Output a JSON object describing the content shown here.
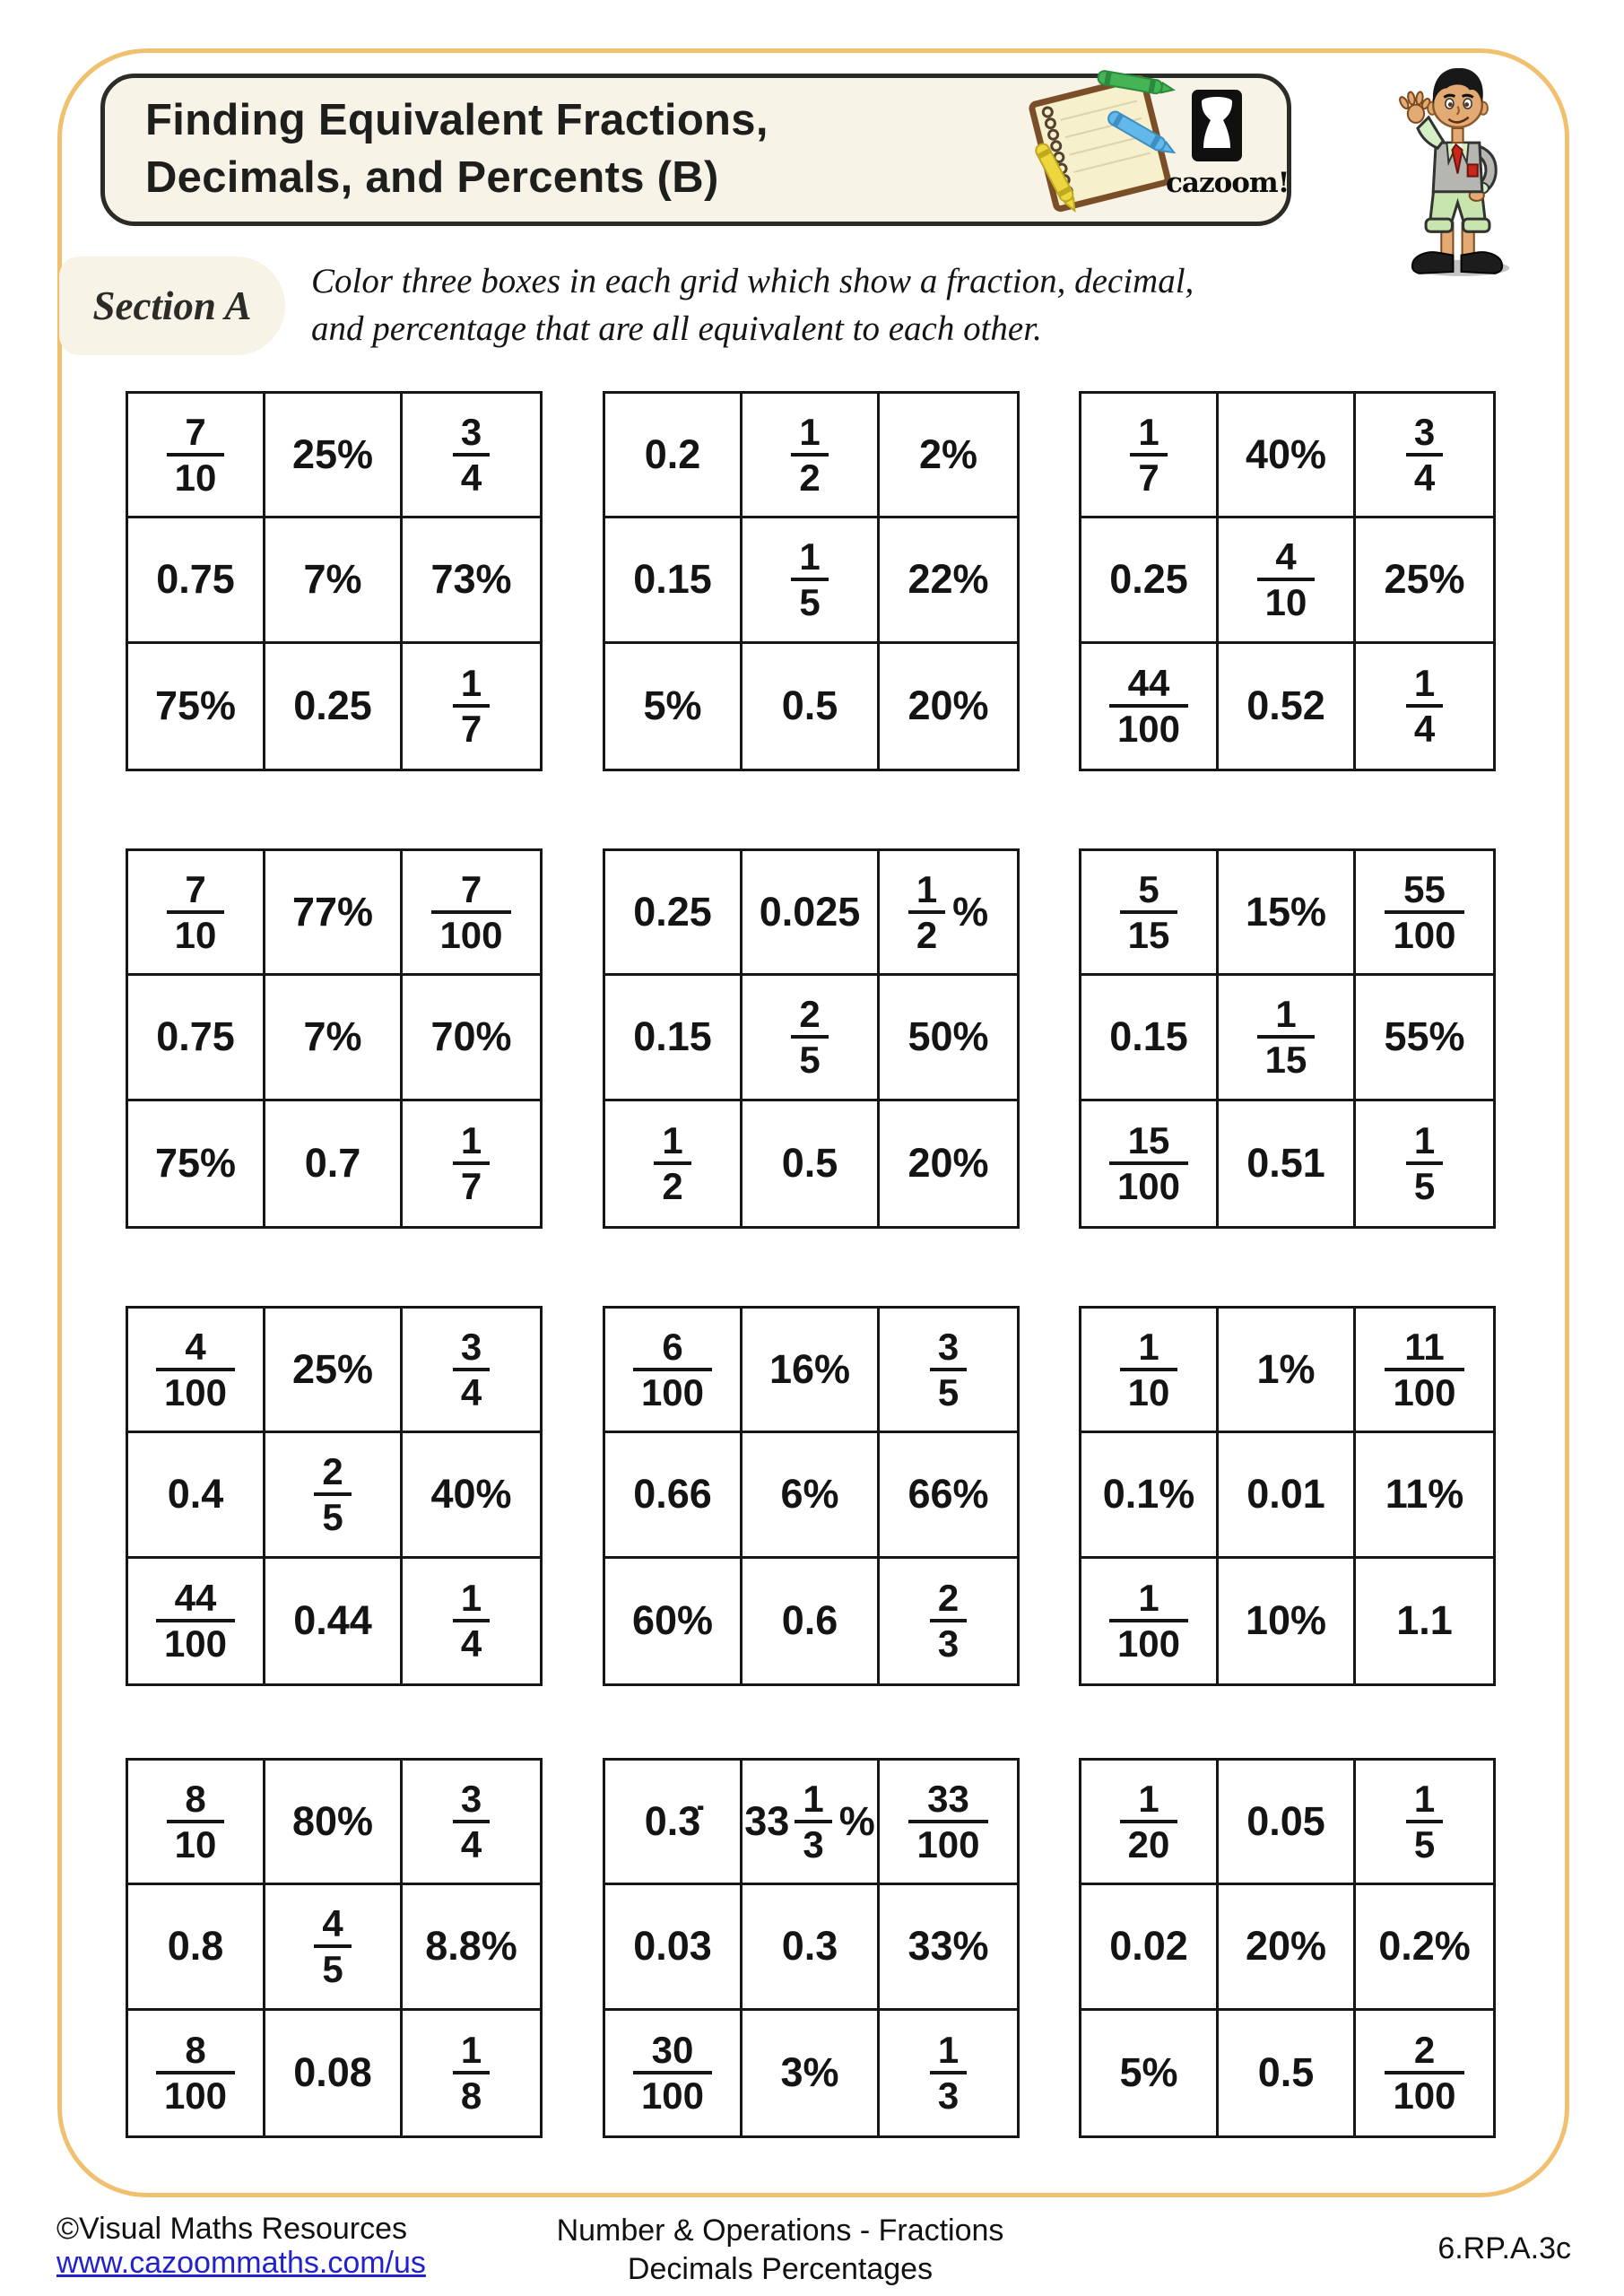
{
  "page": {
    "title_line1": "Finding Equivalent Fractions,",
    "title_line2": "Decimals, and Percents (B)",
    "section_label": "Section A",
    "instructions_line1": "Color three boxes in each grid which show a fraction, decimal,",
    "instructions_line2": "and percentage that are all equivalent to each other.",
    "logo_text": "cazoom!"
  },
  "colors": {
    "border_gold": "#F1C06E",
    "cream_panel": "#F8F3E7",
    "ink": "#1E1E1C",
    "link_blue": "#2222CC",
    "grid_line": "#161616"
  },
  "icons": {
    "logo": "drum-icon",
    "header_art": "notebook-crayons-illustration",
    "mascot": "boy-mascot-illustration"
  },
  "grids": [
    {
      "cells": [
        {
          "f": [
            "7",
            "10"
          ]
        },
        {
          "t": "25%"
        },
        {
          "f": [
            "3",
            "4"
          ]
        },
        {
          "t": "0.75"
        },
        {
          "t": "7%"
        },
        {
          "t": "73%"
        },
        {
          "t": "75%"
        },
        {
          "t": "0.25"
        },
        {
          "f": [
            "1",
            "7"
          ]
        }
      ]
    },
    {
      "cells": [
        {
          "t": "0.2"
        },
        {
          "f": [
            "1",
            "2"
          ]
        },
        {
          "t": "2%"
        },
        {
          "t": "0.15"
        },
        {
          "f": [
            "1",
            "5"
          ]
        },
        {
          "t": "22%"
        },
        {
          "t": "5%"
        },
        {
          "t": "0.5"
        },
        {
          "t": "20%"
        }
      ]
    },
    {
      "cells": [
        {
          "f": [
            "1",
            "7"
          ]
        },
        {
          "t": "40%"
        },
        {
          "f": [
            "3",
            "4"
          ]
        },
        {
          "t": "0.25"
        },
        {
          "f": [
            "4",
            "10"
          ]
        },
        {
          "t": "25%"
        },
        {
          "f": [
            "44",
            "100"
          ]
        },
        {
          "t": "0.52"
        },
        {
          "f": [
            "1",
            "4"
          ]
        }
      ]
    },
    {
      "cells": [
        {
          "f": [
            "7",
            "10"
          ]
        },
        {
          "t": "77%"
        },
        {
          "f": [
            "7",
            "100"
          ]
        },
        {
          "t": "0.75"
        },
        {
          "t": "7%"
        },
        {
          "t": "70%"
        },
        {
          "t": "75%"
        },
        {
          "t": "0.7"
        },
        {
          "f": [
            "1",
            "7"
          ]
        }
      ]
    },
    {
      "cells": [
        {
          "t": "0.25"
        },
        {
          "t": "0.025"
        },
        {
          "f": [
            "1",
            "2"
          ],
          "suf": "%"
        },
        {
          "t": "0.15"
        },
        {
          "f": [
            "2",
            "5"
          ]
        },
        {
          "t": "50%"
        },
        {
          "f": [
            "1",
            "2"
          ]
        },
        {
          "t": "0.5"
        },
        {
          "t": "20%"
        }
      ]
    },
    {
      "cells": [
        {
          "f": [
            "5",
            "15"
          ]
        },
        {
          "t": "15%"
        },
        {
          "f": [
            "55",
            "100"
          ]
        },
        {
          "t": "0.15"
        },
        {
          "f": [
            "1",
            "15"
          ]
        },
        {
          "t": "55%"
        },
        {
          "f": [
            "15",
            "100"
          ]
        },
        {
          "t": "0.51"
        },
        {
          "f": [
            "1",
            "5"
          ]
        }
      ]
    },
    {
      "cells": [
        {
          "f": [
            "4",
            "100"
          ]
        },
        {
          "t": "25%"
        },
        {
          "f": [
            "3",
            "4"
          ]
        },
        {
          "t": "0.4"
        },
        {
          "f": [
            "2",
            "5"
          ]
        },
        {
          "t": "40%"
        },
        {
          "f": [
            "44",
            "100"
          ]
        },
        {
          "t": "0.44"
        },
        {
          "f": [
            "1",
            "4"
          ]
        }
      ]
    },
    {
      "cells": [
        {
          "f": [
            "6",
            "100"
          ]
        },
        {
          "t": "16%"
        },
        {
          "f": [
            "3",
            "5"
          ]
        },
        {
          "t": "0.66"
        },
        {
          "t": "6%"
        },
        {
          "t": "66%"
        },
        {
          "t": "60%"
        },
        {
          "t": "0.6"
        },
        {
          "f": [
            "2",
            "3"
          ]
        }
      ]
    },
    {
      "cells": [
        {
          "f": [
            "1",
            "10"
          ]
        },
        {
          "t": "1%"
        },
        {
          "f": [
            "11",
            "100"
          ]
        },
        {
          "t": "0.1%"
        },
        {
          "t": "0.01"
        },
        {
          "t": "11%"
        },
        {
          "f": [
            "1",
            "100"
          ]
        },
        {
          "t": "10%"
        },
        {
          "t": "1.1"
        }
      ]
    },
    {
      "cells": [
        {
          "f": [
            "8",
            "10"
          ]
        },
        {
          "t": "80%"
        },
        {
          "f": [
            "3",
            "4"
          ]
        },
        {
          "t": "0.8"
        },
        {
          "f": [
            "4",
            "5"
          ]
        },
        {
          "t": "8.8%"
        },
        {
          "f": [
            "8",
            "100"
          ]
        },
        {
          "t": "0.08"
        },
        {
          "f": [
            "1",
            "8"
          ]
        }
      ]
    },
    {
      "cells": [
        {
          "t": "0.3̇"
        },
        {
          "pre": "33",
          "f": [
            "1",
            "3"
          ],
          "suf": "%"
        },
        {
          "f": [
            "33",
            "100"
          ]
        },
        {
          "t": "0.03"
        },
        {
          "t": "0.3"
        },
        {
          "t": "33%"
        },
        {
          "f": [
            "30",
            "100"
          ]
        },
        {
          "t": "3%"
        },
        {
          "f": [
            "1",
            "3"
          ]
        }
      ]
    },
    {
      "cells": [
        {
          "f": [
            "1",
            "20"
          ]
        },
        {
          "t": "0.05"
        },
        {
          "f": [
            "1",
            "5"
          ]
        },
        {
          "t": "0.02"
        },
        {
          "t": "20%"
        },
        {
          "t": "0.2%"
        },
        {
          "t": "5%"
        },
        {
          "t": "0.5"
        },
        {
          "f": [
            "2",
            "100"
          ]
        }
      ]
    }
  ],
  "footer": {
    "copyright": "©Visual Maths Resources",
    "url": "www.cazoommaths.com/us",
    "topic_line1": "Number & Operations - Fractions",
    "topic_line2": "Decimals Percentages",
    "standard_code": "6.RP.A.3c"
  }
}
